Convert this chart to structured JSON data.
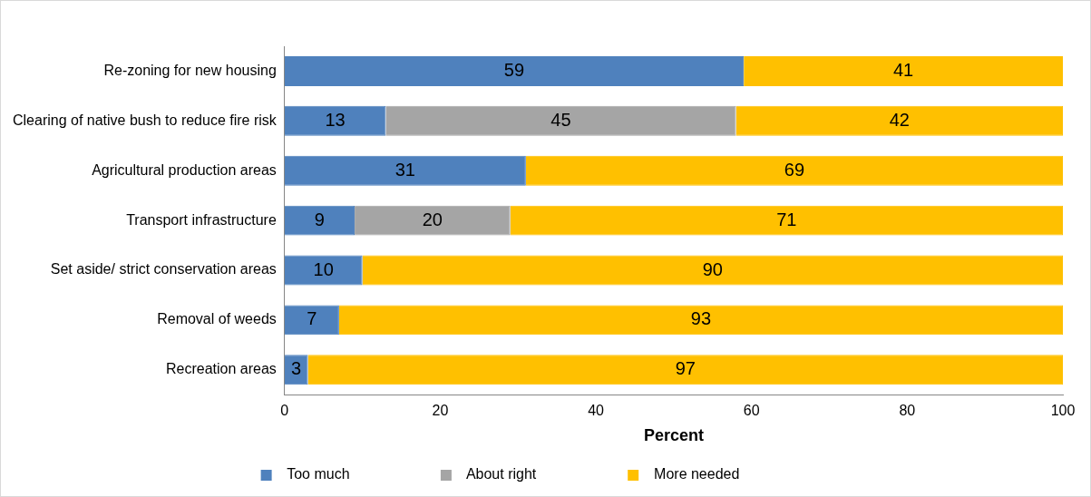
{
  "chart_data": {
    "type": "bar",
    "orientation": "horizontal",
    "stacked": true,
    "xlabel": "Percent",
    "categories": [
      "Re-zoning for new housing",
      "Clearing of native bush to reduce fire risk",
      "Agricultural production areas",
      "Transport infrastructure",
      "Set aside/ strict conservation areas",
      "Removal of weeds",
      "Recreation areas"
    ],
    "series": [
      {
        "name": "Too much",
        "color": "#4f81bd",
        "values": [
          59,
          13,
          31,
          9,
          10,
          7,
          3
        ]
      },
      {
        "name": "About right",
        "color": "#a5a5a5",
        "values": [
          null,
          45,
          null,
          20,
          null,
          null,
          null
        ]
      },
      {
        "name": "More needed",
        "color": "#ffc000",
        "values": [
          41,
          42,
          69,
          71,
          90,
          93,
          97
        ]
      }
    ],
    "xlim": [
      0,
      100
    ],
    "xticks": [
      0,
      20,
      40,
      60,
      80,
      100
    ],
    "grid": false,
    "legend": "bottom",
    "data_labels": true
  }
}
